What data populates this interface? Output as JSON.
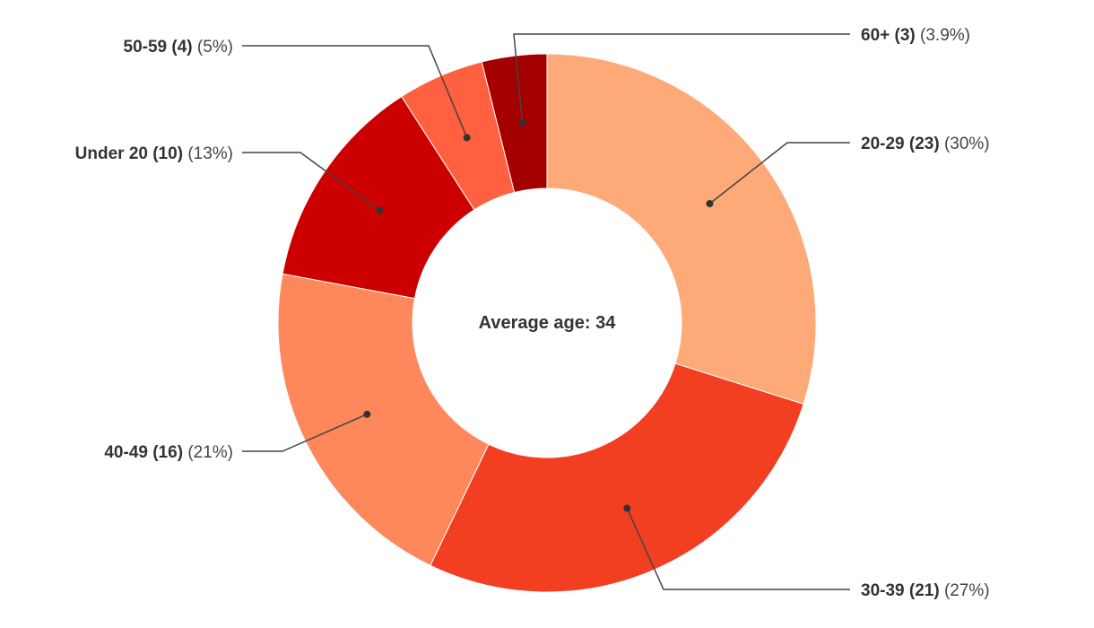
{
  "chart_data": {
    "type": "pie",
    "variant": "donut",
    "center_label": "Average age: 34",
    "slices": [
      {
        "label": "20-29",
        "count": "23",
        "count_text": "(23)",
        "percent": 30,
        "percent_text": "(30%)",
        "color": "#fdaa78"
      },
      {
        "label": "30-39",
        "count": "21",
        "count_text": "(21)",
        "percent": 27,
        "percent_text": "(27%)",
        "color": "#f23f22"
      },
      {
        "label": "40-49",
        "count": "16",
        "count_text": "(16)",
        "percent": 21,
        "percent_text": "(21%)",
        "color": "#fe875b"
      },
      {
        "label": "Under 20",
        "count": "10",
        "count_text": "(10)",
        "percent": 13,
        "percent_text": "(13%)",
        "color": "#cc0000"
      },
      {
        "label": "50-59",
        "count": "4",
        "count_text": "(4)",
        "percent": 5,
        "percent_text": "(5%)",
        "color": "#ff6040"
      },
      {
        "label": "60+",
        "count": "3",
        "count_text": "(3)",
        "percent": 3.9,
        "percent_text": "(3.9%)",
        "color": "#a50000"
      }
    ]
  }
}
